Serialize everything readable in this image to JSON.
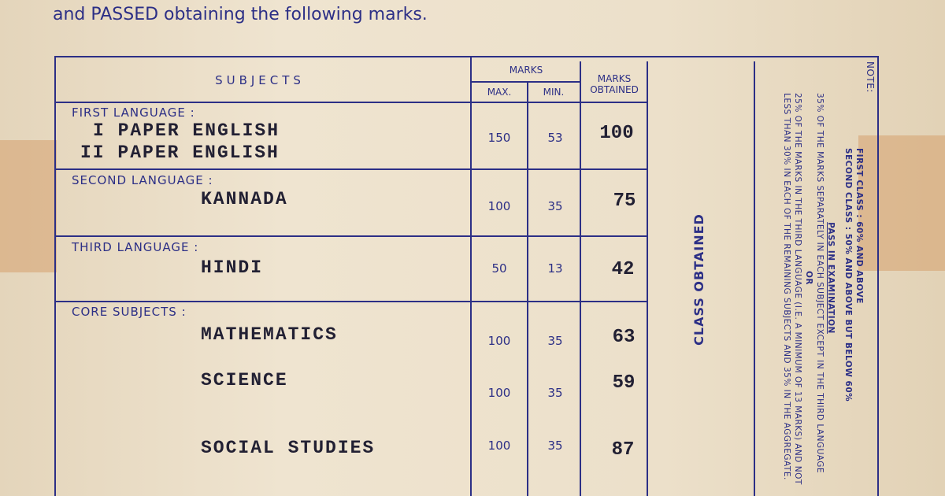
{
  "intro": "and PASSED obtaining the following marks.",
  "table": {
    "header": {
      "subjects": "SUBJECTS",
      "marks": "MARKS",
      "max": "MAX.",
      "min": "MIN.",
      "obtained": "MARKS OBTAINED"
    },
    "groups": [
      {
        "label": "FIRST LANGUAGE :",
        "rows": [
          {
            "subjects": [
              "I PAPER ENGLISH",
              "II PAPER ENGLISH"
            ],
            "max": 150,
            "min": 53,
            "obtained": 100
          }
        ]
      },
      {
        "label": "SECOND LANGUAGE :",
        "rows": [
          {
            "subjects": [
              "KANNADA"
            ],
            "max": 100,
            "min": 35,
            "obtained": 75
          }
        ]
      },
      {
        "label": "THIRD LANGUAGE :",
        "rows": [
          {
            "subjects": [
              "HINDI"
            ],
            "max": 50,
            "min": 13,
            "obtained": 42
          }
        ]
      },
      {
        "label": "CORE SUBJECTS :",
        "rows": [
          {
            "subjects": [
              "MATHEMATICS"
            ],
            "max": 100,
            "min": 35,
            "obtained": 63
          },
          {
            "subjects": [
              "SCIENCE"
            ],
            "max": 100,
            "min": 35,
            "obtained": 59
          },
          {
            "subjects": [
              "SOCIAL STUDIES"
            ],
            "max": 100,
            "min": 35,
            "obtained": 87
          }
        ]
      }
    ],
    "class_obtained": "CLASS OBTAINED"
  },
  "note": {
    "label": "NOTE:",
    "first_class": "FIRST CLASS : 60% AND ABOVE",
    "second_class": "SECOND CLASS : 50% AND ABOVE BUT BELOW 60%",
    "pass_title": "PASS IN EXAMINATION",
    "rule_1": "35% OF THE MARKS SEPARATELY IN EACH SUBJECT EXCEPT IN THE THIRD LANGUAGE",
    "or": "OR",
    "rule_2": "25% OF THE MARKS IN THE THIRD LANGUAGE (I.E. A MINIMUM OF 13 MARKS) AND NOT LESS THAN 30% IN EACH OF THE REMAINING SUBJECTS AND 35% IN THE AGGREGATE."
  }
}
